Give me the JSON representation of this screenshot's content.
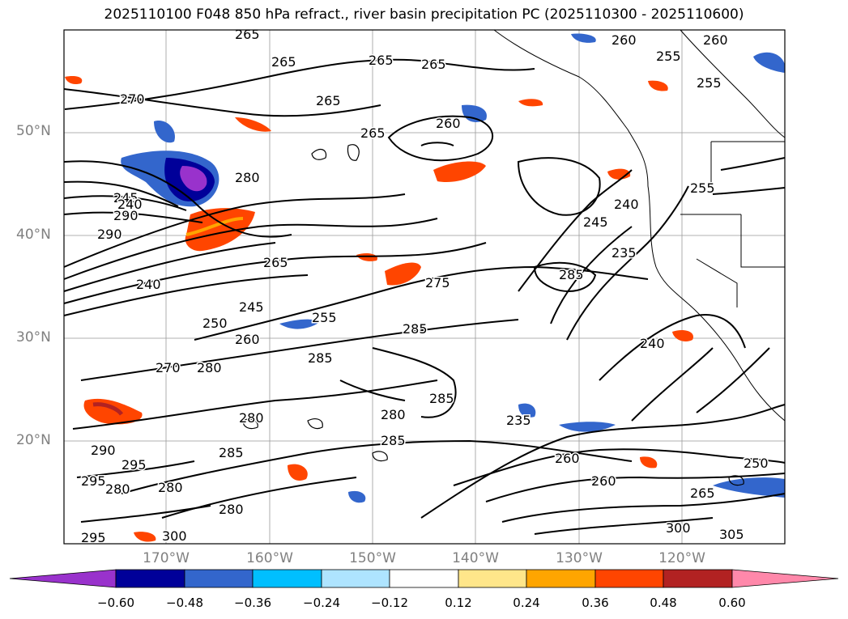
{
  "title": "2025110100 F048 850 hPa refract., river basin precipitation PC (2025110300 - 2025110600)",
  "map": {
    "lat_labels": [
      "50°N",
      "40°N",
      "30°N",
      "20°N"
    ],
    "lon_labels": [
      "170°W",
      "160°W",
      "150°W",
      "140°W",
      "130°W",
      "120°W"
    ],
    "contour_labels": [
      "265",
      "265",
      "265",
      "265",
      "260",
      "260",
      "255",
      "255",
      "270",
      "265",
      "260",
      "265",
      "280",
      "245",
      "240",
      "290",
      "290",
      "265",
      "240",
      "275",
      "285",
      "245",
      "240",
      "235",
      "255",
      "245",
      "250",
      "260",
      "255",
      "285",
      "240",
      "270",
      "280",
      "285",
      "285",
      "285",
      "280",
      "235",
      "280",
      "290",
      "295",
      "295",
      "280",
      "280",
      "285",
      "280",
      "260",
      "260",
      "250",
      "265",
      "300",
      "305",
      "300",
      "295"
    ]
  },
  "colorbar": {
    "colors": [
      "#9932cc",
      "#000099",
      "#3366cc",
      "#00bfff",
      "#aee4ff",
      "#ffffff",
      "#ffe68a",
      "#ffa500",
      "#ff4500",
      "#b22222",
      "#ff88aa"
    ],
    "tick_labels": [
      "−0.60",
      "−0.48",
      "−0.36",
      "−0.24",
      "−0.12",
      "0.12",
      "0.24",
      "0.36",
      "0.48",
      "0.60"
    ]
  }
}
